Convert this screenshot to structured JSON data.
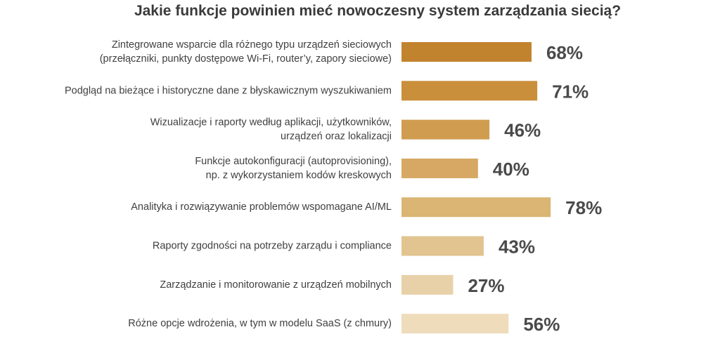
{
  "chart_data": {
    "type": "bar",
    "orientation": "horizontal",
    "title": "Jakie funkcje powinien mieć nowoczesny system zarządzania siecią?",
    "xlabel": "",
    "ylabel": "",
    "grid": false,
    "legend": "none",
    "unit": "%",
    "xlim": [
      0,
      100
    ],
    "categories": [
      [
        "Zintegrowane wsparcie dla różnego typu urządzeń sieciowych",
        "(przełączniki, punkty dostępowe Wi-Fi, router’y, zapory sieciowe)"
      ],
      [
        "Podgląd na bieżące i historyczne dane z błyskawicznym wyszukiwaniem"
      ],
      [
        "Wizualizacje i raporty według aplikacji, użytkowników,",
        "urządzeń oraz lokalizacji"
      ],
      [
        "Funkcje autokonfiguracji (autoprovisioning),",
        "np. z wykorzystaniem kodów kreskowych"
      ],
      [
        "Analityka i rozwiązywanie problemów wspomagane AI/ML"
      ],
      [
        "Raporty zgodności na potrzeby zarządu i compliance"
      ],
      [
        "Zarządzanie i monitorowanie z urządzeń mobilnych"
      ],
      [
        "Różne opcje wdrożenia, w tym w modelu SaaS (z chmury)"
      ]
    ],
    "values": [
      68,
      71,
      46,
      40,
      78,
      43,
      27,
      56
    ],
    "value_labels": [
      "68%",
      "71%",
      "46%",
      "40%",
      "78%",
      "43%",
      "27%",
      "56%"
    ],
    "colors": [
      "#c2832f",
      "#c98f3b",
      "#d09d50",
      "#d6a864",
      "#dab573",
      "#e1c490",
      "#e8d1a8",
      "#eedcbb"
    ]
  }
}
